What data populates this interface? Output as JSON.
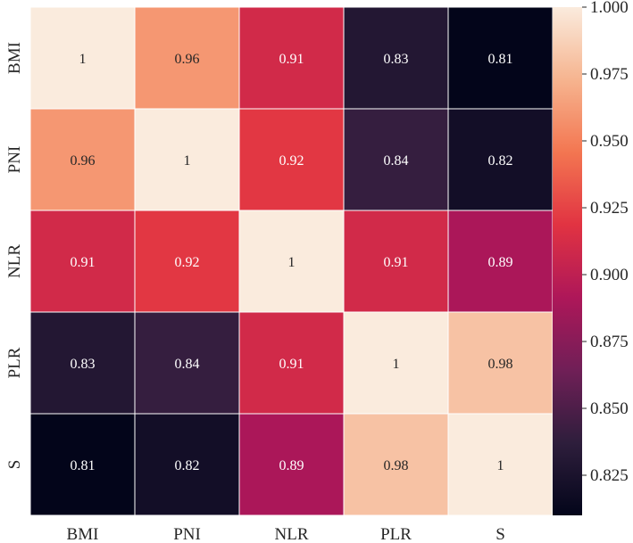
{
  "chart_data": {
    "type": "heatmap",
    "title": "",
    "xlabel": "",
    "ylabel": "",
    "x_categories": [
      "BMI",
      "PNI",
      "NLR",
      "PLR",
      "S"
    ],
    "y_categories": [
      "BMI",
      "PNI",
      "NLR",
      "PLR",
      "S"
    ],
    "values": [
      [
        1,
        0.96,
        0.91,
        0.83,
        0.81
      ],
      [
        0.96,
        1,
        0.92,
        0.84,
        0.82
      ],
      [
        0.91,
        0.92,
        1,
        0.91,
        0.89
      ],
      [
        0.83,
        0.84,
        0.91,
        1,
        0.98
      ],
      [
        0.81,
        0.82,
        0.89,
        0.98,
        1
      ]
    ],
    "cell_labels": [
      [
        "1",
        "0.96",
        "0.91",
        "0.83",
        "0.81"
      ],
      [
        "0.96",
        "1",
        "0.92",
        "0.84",
        "0.82"
      ],
      [
        "0.91",
        "0.92",
        "1",
        "0.91",
        "0.89"
      ],
      [
        "0.83",
        "0.84",
        "0.91",
        "1",
        "0.98"
      ],
      [
        "0.81",
        "0.82",
        "0.89",
        "0.98",
        "1"
      ]
    ],
    "colorbar": {
      "vmin": 0.81,
      "vmax": 1.0,
      "ticks": [
        0.825,
        0.85,
        0.875,
        0.9,
        0.925,
        0.95,
        0.975,
        1.0
      ],
      "tick_labels": [
        "0.825",
        "0.850",
        "0.875",
        "0.900",
        "0.925",
        "0.950",
        "0.975",
        "1.000"
      ],
      "position": "right"
    },
    "colormap": "rocket",
    "colormap_stops": [
      "#03051a",
      "#2e1e3c",
      "#701f57",
      "#ae1759",
      "#e13342",
      "#f37651",
      "#f6b48f",
      "#faebdd"
    ],
    "grid": false
  }
}
